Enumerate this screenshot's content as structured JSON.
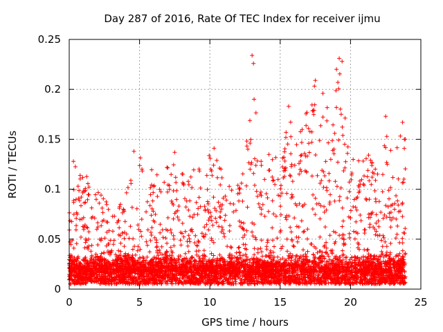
{
  "chart_data": {
    "type": "scatter",
    "title": "Day 287 of 2016, Rate Of TEC Index for receiver ijmu",
    "xlabel": "GPS time / hours",
    "ylabel": "ROTI / TECUs",
    "xlim": [
      0,
      25
    ],
    "ylim": [
      0,
      0.25
    ],
    "x_ticks": [
      "0",
      "5",
      "10",
      "15",
      "20",
      "25"
    ],
    "y_ticks": [
      "0",
      "0.05",
      "0.1",
      "0.15",
      "0.2",
      "0.25"
    ],
    "x_tick_values": [
      0,
      5,
      10,
      15,
      20,
      25
    ],
    "y_tick_values": [
      0,
      0.05,
      0.1,
      0.15,
      0.2,
      0.25
    ],
    "grid": true,
    "marker": "plus",
    "series_color": "#ff0000",
    "time_range_hours": [
      0,
      23.9
    ],
    "baseline_roti_range": [
      0.005,
      0.035
    ],
    "envelope": [
      {
        "x": 0.0,
        "max": 0.08
      },
      {
        "x": 0.3,
        "max": 0.128
      },
      {
        "x": 1.2,
        "max": 0.122
      },
      {
        "x": 2.0,
        "max": 0.1
      },
      {
        "x": 3.0,
        "max": 0.085
      },
      {
        "x": 4.0,
        "max": 0.095
      },
      {
        "x": 4.6,
        "max": 0.138
      },
      {
        "x": 5.5,
        "max": 0.13
      },
      {
        "x": 6.5,
        "max": 0.115
      },
      {
        "x": 7.5,
        "max": 0.137
      },
      {
        "x": 8.5,
        "max": 0.12
      },
      {
        "x": 9.5,
        "max": 0.125
      },
      {
        "x": 10.3,
        "max": 0.141
      },
      {
        "x": 11.5,
        "max": 0.105
      },
      {
        "x": 12.5,
        "max": 0.12
      },
      {
        "x": 13.0,
        "max": 0.234
      },
      {
        "x": 13.5,
        "max": 0.13
      },
      {
        "x": 14.3,
        "max": 0.15
      },
      {
        "x": 15.0,
        "max": 0.12
      },
      {
        "x": 15.6,
        "max": 0.183
      },
      {
        "x": 16.5,
        "max": 0.16
      },
      {
        "x": 17.5,
        "max": 0.209
      },
      {
        "x": 18.3,
        "max": 0.19
      },
      {
        "x": 19.2,
        "max": 0.231
      },
      {
        "x": 20.0,
        "max": 0.14
      },
      {
        "x": 21.0,
        "max": 0.14
      },
      {
        "x": 22.0,
        "max": 0.125
      },
      {
        "x": 23.0,
        "max": 0.173
      },
      {
        "x": 23.8,
        "max": 0.167
      }
    ],
    "notable_points": [
      {
        "x": 13.0,
        "y": 0.234
      },
      {
        "x": 13.1,
        "y": 0.226
      },
      {
        "x": 19.2,
        "y": 0.231
      },
      {
        "x": 19.4,
        "y": 0.228
      },
      {
        "x": 19.0,
        "y": 0.22
      },
      {
        "x": 17.5,
        "y": 0.209
      },
      {
        "x": 19.1,
        "y": 0.207
      },
      {
        "x": 15.6,
        "y": 0.183
      },
      {
        "x": 16.9,
        "y": 0.177
      },
      {
        "x": 22.5,
        "y": 0.173
      },
      {
        "x": 23.7,
        "y": 0.167
      },
      {
        "x": 4.6,
        "y": 0.138
      },
      {
        "x": 7.5,
        "y": 0.137
      },
      {
        "x": 10.3,
        "y": 0.141
      },
      {
        "x": 0.3,
        "y": 0.128
      }
    ]
  }
}
